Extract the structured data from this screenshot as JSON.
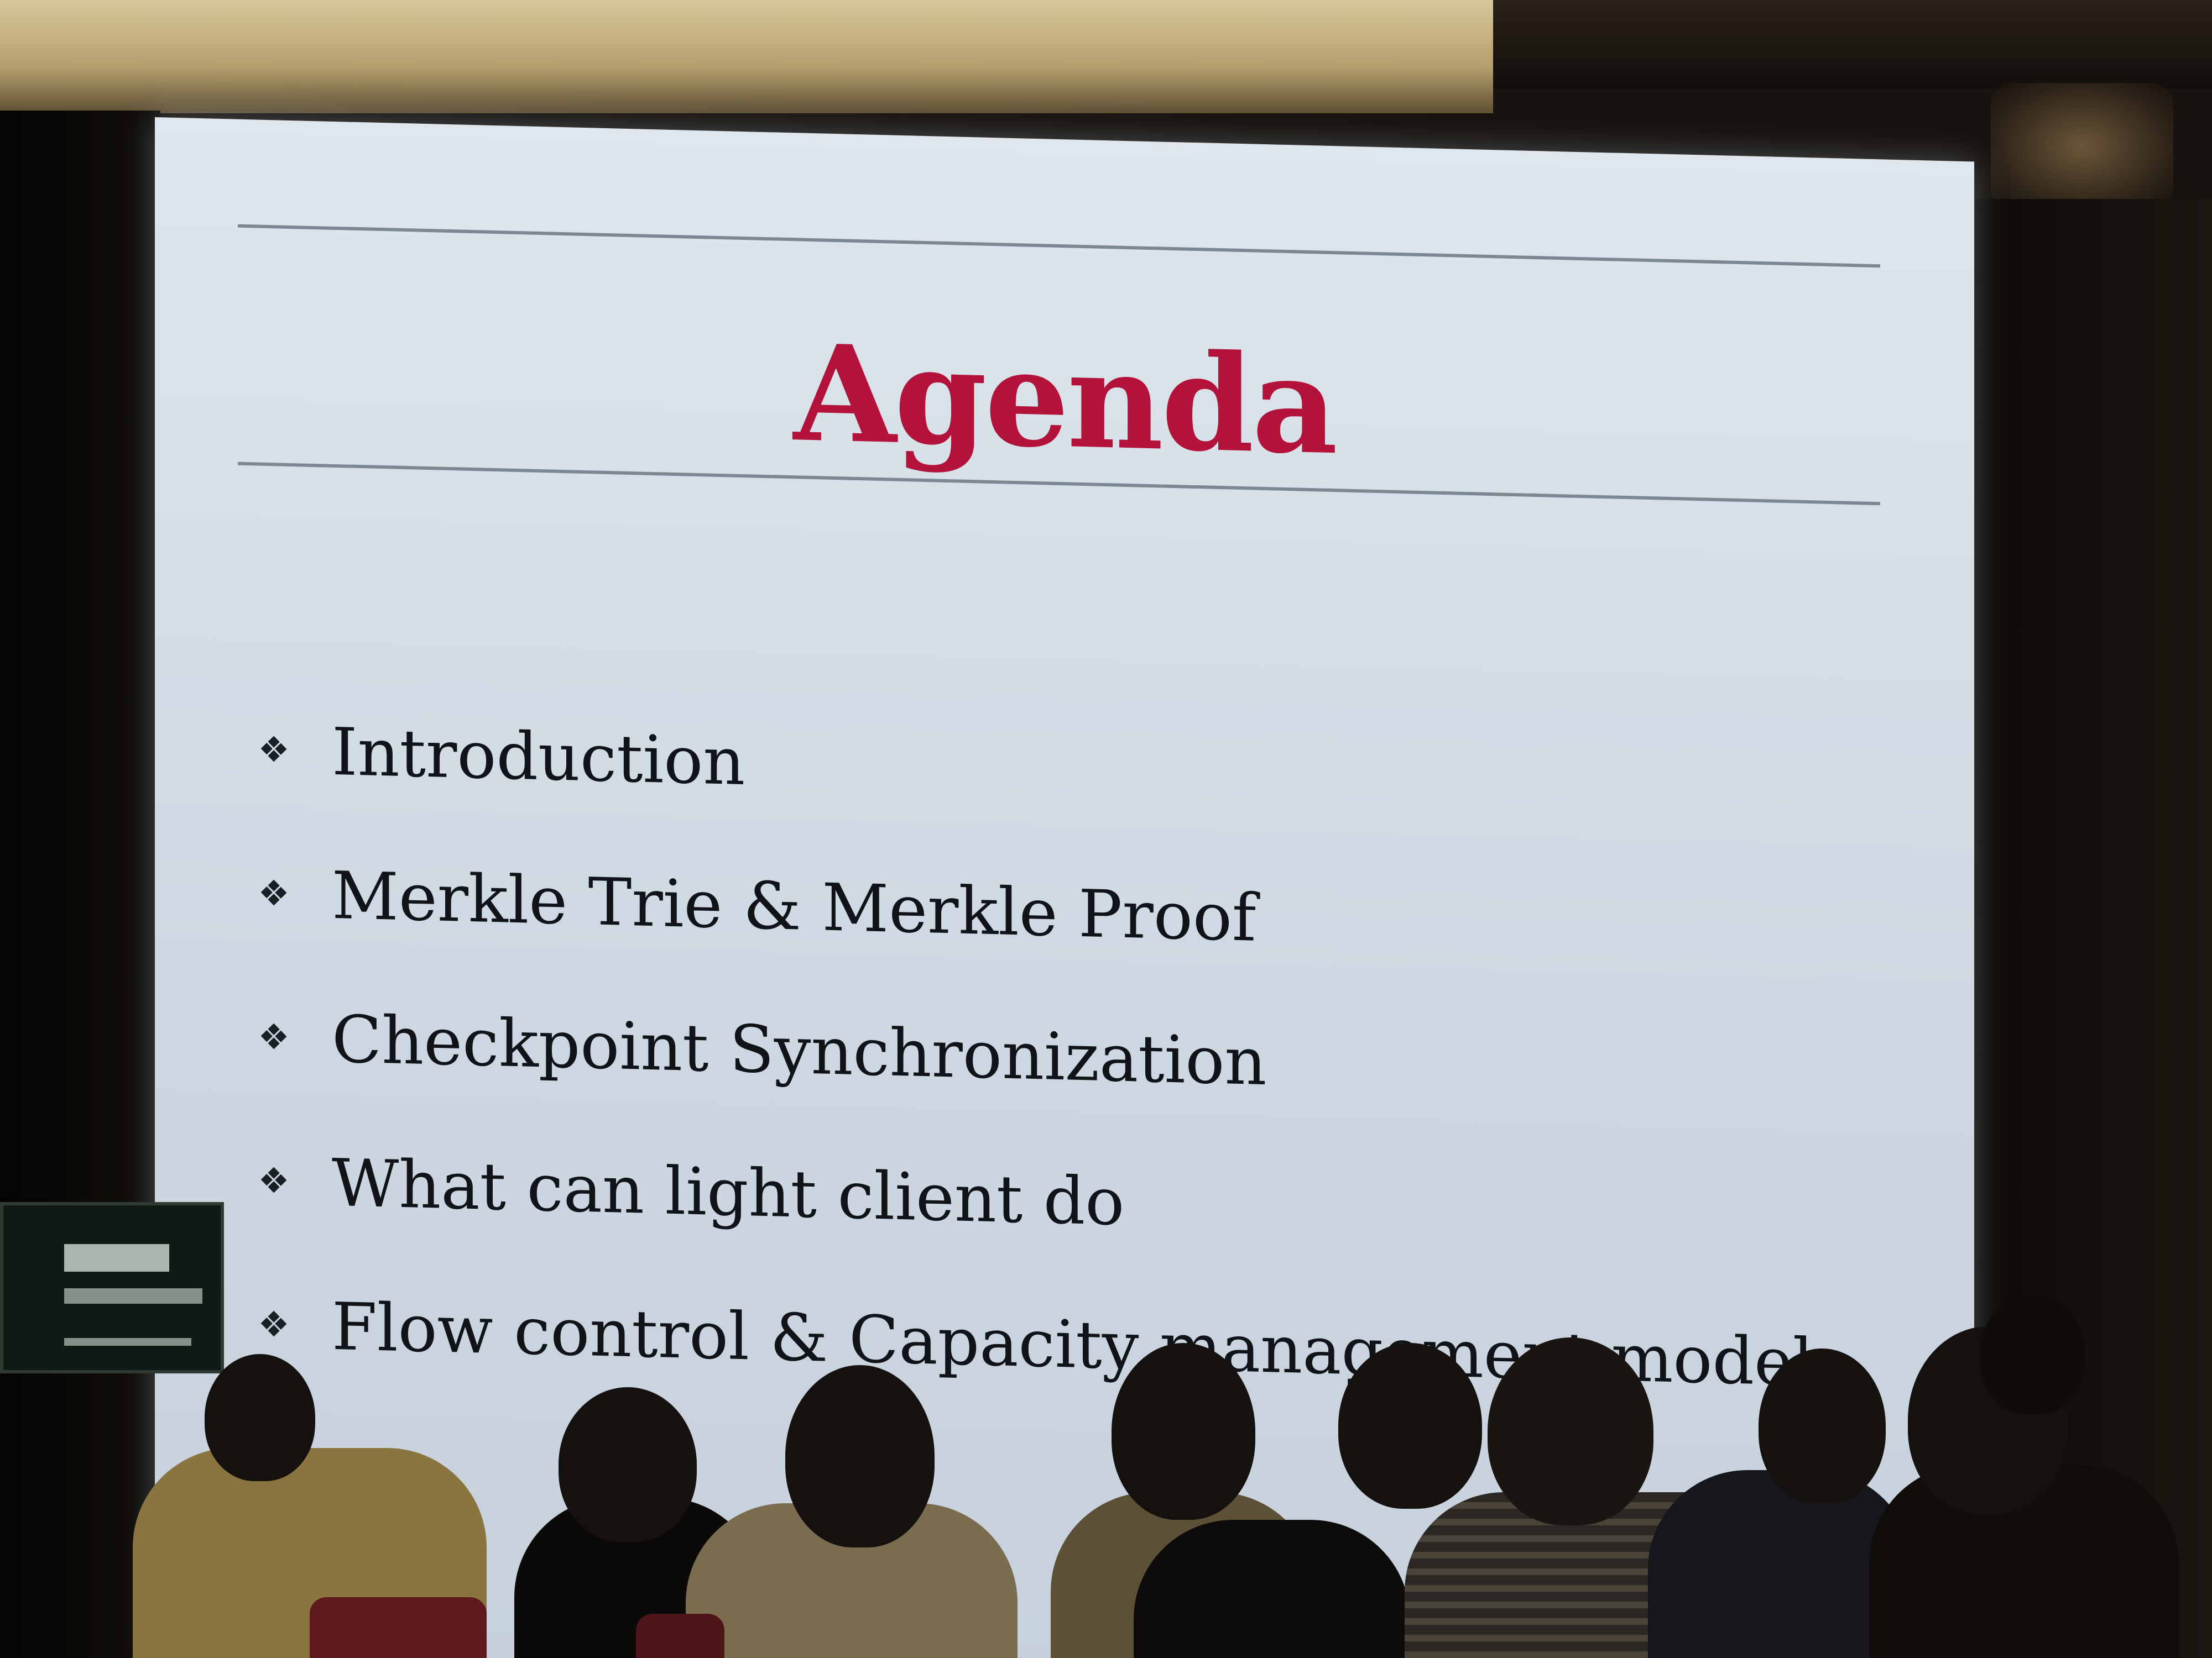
{
  "slide": {
    "title": "Agenda",
    "title_color": "#b3123a",
    "bullet_icon": "diamond-bullet-icon",
    "items": [
      {
        "label": "Introduction"
      },
      {
        "label": "Merkle Trie & Merkle Proof"
      },
      {
        "label": "Checkpoint Synchronization"
      },
      {
        "label": "What can light client do"
      },
      {
        "label": "Flow control & Capacity management model"
      }
    ]
  }
}
